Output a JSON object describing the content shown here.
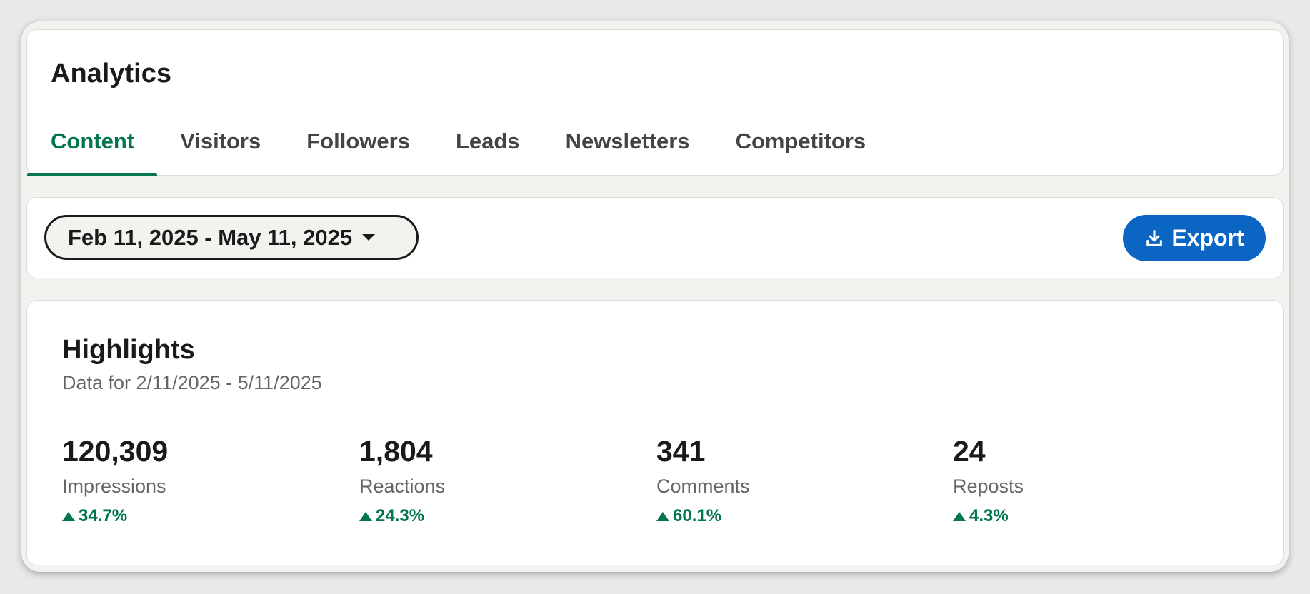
{
  "header": {
    "title": "Analytics",
    "tabs": [
      {
        "label": "Content",
        "active": true
      },
      {
        "label": "Visitors",
        "active": false
      },
      {
        "label": "Followers",
        "active": false
      },
      {
        "label": "Leads",
        "active": false
      },
      {
        "label": "Newsletters",
        "active": false
      },
      {
        "label": "Competitors",
        "active": false
      }
    ]
  },
  "toolbar": {
    "date_range": "Feb 11, 2025 - May 11, 2025",
    "export_label": "Export",
    "export_icon": "download-icon"
  },
  "highlights": {
    "title": "Highlights",
    "subtitle": "Data for 2/11/2025 - 5/11/2025",
    "metrics": [
      {
        "value": "120,309",
        "label": "Impressions",
        "change": "34.7%",
        "trend": "up"
      },
      {
        "value": "1,804",
        "label": "Reactions",
        "change": "24.3%",
        "trend": "up"
      },
      {
        "value": "341",
        "label": "Comments",
        "change": "60.1%",
        "trend": "up"
      },
      {
        "value": "24",
        "label": "Reposts",
        "change": "4.3%",
        "trend": "up"
      }
    ]
  },
  "colors": {
    "accent_green": "#01754f",
    "primary_blue": "#0a66c2"
  }
}
